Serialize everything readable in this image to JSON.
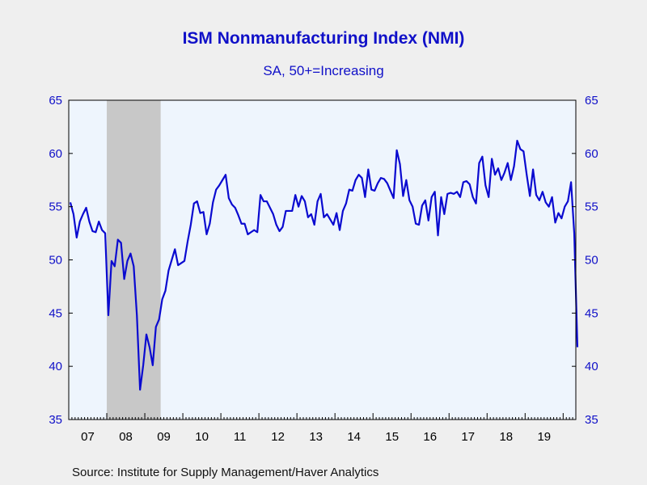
{
  "title": "ISM Nonmanufacturing Index (NMI)",
  "subtitle": "SA, 50+=Increasing",
  "source": "Source:  Institute for Supply Management/Haver Analytics",
  "colors": {
    "line": "#0a0ad0",
    "axis_text": "#1010c8",
    "plot_bg": "#eef5fd",
    "recession": "#c8c8c8",
    "page_bg": "#efefef"
  },
  "chart_data": {
    "type": "line",
    "title": "ISM Nonmanufacturing Index (NMI)",
    "subtitle": "SA, 50+=Increasing",
    "ylabel": "",
    "xlabel": "",
    "ylim": [
      35,
      65
    ],
    "yticks": [
      35,
      40,
      45,
      50,
      55,
      60,
      65
    ],
    "y_axis_both_sides": true,
    "grid": false,
    "x_start": "2007-01",
    "x_end": "2020-04",
    "x_tick_labels": [
      "07",
      "08",
      "09",
      "10",
      "11",
      "12",
      "13",
      "14",
      "15",
      "16",
      "17",
      "18",
      "19"
    ],
    "shaded_regions": [
      {
        "label": "recession",
        "start": "2008-01",
        "end": "2009-06"
      }
    ],
    "series": [
      {
        "start": "2007-01",
        "frequency": "monthly",
        "values": [
          55.4,
          54.3,
          52.1,
          53.6,
          54.3,
          54.9,
          53.6,
          52.7,
          52.6,
          53.6,
          52.8,
          52.5,
          44.8,
          49.9,
          49.4,
          51.9,
          51.6,
          48.2,
          49.9,
          50.6,
          49.4,
          44.8,
          37.8,
          40.1,
          43.0,
          41.8,
          40.1,
          43.7,
          44.4,
          46.3,
          47.1,
          49.0,
          50.0,
          51.0,
          49.5,
          49.7,
          49.9,
          51.7,
          53.3,
          55.3,
          55.5,
          54.4,
          54.5,
          52.4,
          53.4,
          55.4,
          56.6,
          57.0,
          57.5,
          58.0,
          55.8,
          55.2,
          54.9,
          54.2,
          53.4,
          53.4,
          52.4,
          52.6,
          52.8,
          52.6,
          56.1,
          55.5,
          55.5,
          54.9,
          54.3,
          53.3,
          52.7,
          53.1,
          54.6,
          54.6,
          54.6,
          56.1,
          55.0,
          56.0,
          55.5,
          54.0,
          54.3,
          53.3,
          55.5,
          56.2,
          54.0,
          54.3,
          53.8,
          53.3,
          54.4,
          52.8,
          54.6,
          55.3,
          56.6,
          56.5,
          57.5,
          58.0,
          57.7,
          55.9,
          58.5,
          56.6,
          56.5,
          57.2,
          57.7,
          57.6,
          57.2,
          56.5,
          55.8,
          60.3,
          59.0,
          56.0,
          57.5,
          55.6,
          55.0,
          53.4,
          53.3,
          55.1,
          55.6,
          53.7,
          55.9,
          56.4,
          52.3,
          55.9,
          54.3,
          56.2,
          56.3,
          56.2,
          56.4,
          55.9,
          57.3,
          57.4,
          57.1,
          55.9,
          55.3,
          59.1,
          59.7,
          57.0,
          55.9,
          59.5,
          58.0,
          58.6,
          57.5,
          58.2,
          59.1,
          57.5,
          58.8,
          61.2,
          60.4,
          60.2,
          58.0,
          56.0,
          58.5,
          56.1,
          55.6,
          56.4,
          55.4,
          55.0,
          55.9,
          53.5,
          54.4,
          53.9,
          55.0,
          55.5,
          57.3,
          52.5,
          41.8
        ]
      }
    ]
  }
}
